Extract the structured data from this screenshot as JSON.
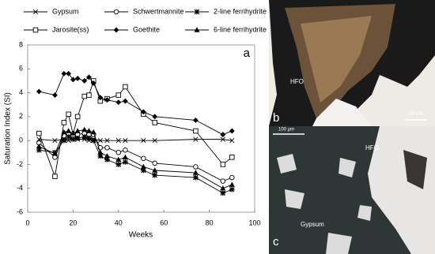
{
  "chart_data": {
    "type": "line",
    "panel_label": "a",
    "x_label": "Weeks",
    "y_label": "Saturation Index (SI)",
    "x": [
      5,
      12,
      16,
      18,
      20,
      22,
      25,
      27,
      29,
      32,
      35,
      40,
      43,
      51,
      56,
      74,
      86,
      90
    ],
    "xlim": [
      0,
      100
    ],
    "xticks": [
      0,
      20,
      40,
      60,
      80,
      100
    ],
    "ylim": [
      -6,
      8
    ],
    "yticks": [
      -6,
      -4,
      -2,
      0,
      2,
      4,
      6,
      8
    ],
    "grid": false,
    "series": [
      {
        "name": "Gypsum",
        "color": "#000000",
        "marker": "x",
        "values": [
          0.1,
          0.0,
          0.1,
          0.0,
          0.1,
          0.1,
          0.1,
          0.0,
          0.1,
          0.0,
          0.0,
          0.0,
          0.0,
          0.0,
          0.0,
          0.1,
          0.1,
          0.0
        ]
      },
      {
        "name": "Schwertmannite",
        "color": "#000000",
        "marker": "circle",
        "values": [
          -0.2,
          -1.4,
          0.4,
          0.6,
          0.3,
          0.5,
          0.6,
          0.5,
          0.5,
          -0.6,
          -0.6,
          -1.0,
          -0.8,
          -1.5,
          -1.9,
          -2.2,
          -3.4,
          -3.1
        ]
      },
      {
        "name": "2-line ferrihydrite",
        "color": "#000000",
        "marker": "asterisk",
        "values": [
          -0.8,
          -1.0,
          0.0,
          0.3,
          0.1,
          0.2,
          0.3,
          0.2,
          0.0,
          -1.3,
          -1.6,
          -2.0,
          -1.8,
          -2.5,
          -2.9,
          -3.1,
          -4.4,
          -4.1
        ]
      },
      {
        "name": "Jarosite(ss)",
        "color": "#000000",
        "marker": "square",
        "values": [
          0.6,
          -3.0,
          1.5,
          2.2,
          0.5,
          2.0,
          3.7,
          3.8,
          5.0,
          3.3,
          3.5,
          3.8,
          4.5,
          2.2,
          1.5,
          0.8,
          -2.0,
          -1.4
        ]
      },
      {
        "name": "Goethite",
        "color": "#000000",
        "marker": "diamond",
        "values": [
          4.1,
          3.8,
          5.6,
          5.6,
          5.1,
          5.2,
          5.0,
          5.3,
          4.8,
          3.6,
          3.4,
          3.2,
          3.3,
          2.4,
          2.0,
          1.7,
          0.5,
          0.8
        ]
      },
      {
        "name": "6-line ferrihydrite",
        "color": "#000000",
        "marker": "triangle",
        "values": [
          -0.5,
          -1.1,
          0.7,
          0.8,
          0.6,
          0.8,
          0.9,
          0.8,
          0.7,
          -1.0,
          -1.3,
          -1.6,
          -1.4,
          -2.2,
          -2.5,
          -2.7,
          -4.0,
          -3.7
        ]
      }
    ]
  },
  "photos": {
    "b": {
      "label": "b",
      "hfo": "HFO",
      "scale": "100 µm"
    },
    "c": {
      "label": "c",
      "hfo": "HFO",
      "gypsum": "Gypsum",
      "scale": "100 µm"
    }
  }
}
